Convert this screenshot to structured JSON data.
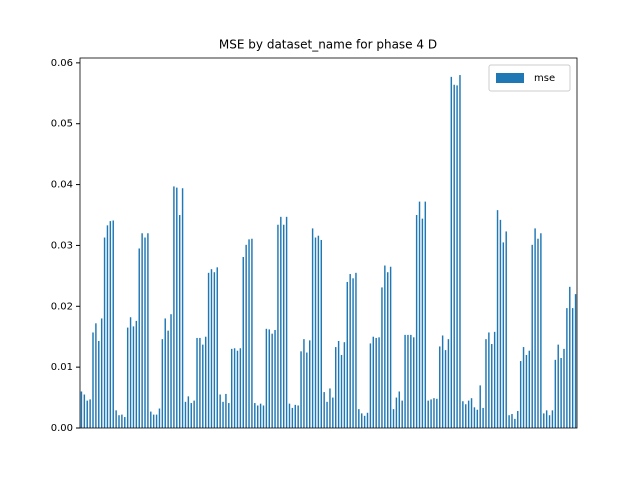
{
  "chart_data": {
    "type": "bar",
    "title": "MSE by dataset_name for phase 4 D",
    "series": [
      {
        "name": "mse",
        "color": "#1f77b4",
        "values": [
          0.006,
          0.0055,
          0.0045,
          0.0047,
          0.0157,
          0.0172,
          0.0143,
          0.018,
          0.0313,
          0.0333,
          0.034,
          0.0341,
          0.0029,
          0.0021,
          0.0022,
          0.0018,
          0.0165,
          0.0182,
          0.0167,
          0.0176,
          0.0295,
          0.032,
          0.0313,
          0.032,
          0.0027,
          0.0022,
          0.0022,
          0.0032,
          0.0146,
          0.018,
          0.016,
          0.0187,
          0.0397,
          0.0395,
          0.035,
          0.0394,
          0.0043,
          0.0052,
          0.0041,
          0.0045,
          0.0148,
          0.0148,
          0.0137,
          0.015,
          0.0255,
          0.0261,
          0.0256,
          0.0264,
          0.0055,
          0.0043,
          0.0056,
          0.0041,
          0.013,
          0.0131,
          0.0127,
          0.0131,
          0.0281,
          0.0301,
          0.031,
          0.0311,
          0.0041,
          0.0037,
          0.004,
          0.0037,
          0.0163,
          0.0162,
          0.0155,
          0.0161,
          0.0334,
          0.0347,
          0.0334,
          0.0347,
          0.004,
          0.0033,
          0.0038,
          0.0037,
          0.0126,
          0.0146,
          0.0124,
          0.0144,
          0.0328,
          0.0313,
          0.0316,
          0.0309,
          0.0059,
          0.0043,
          0.0065,
          0.005,
          0.0133,
          0.0143,
          0.012,
          0.0141,
          0.024,
          0.0253,
          0.0246,
          0.0255,
          0.0031,
          0.0024,
          0.002,
          0.0025,
          0.0139,
          0.015,
          0.0148,
          0.0149,
          0.0231,
          0.0267,
          0.0256,
          0.0265,
          0.0031,
          0.005,
          0.006,
          0.0045,
          0.0153,
          0.0153,
          0.0153,
          0.0149,
          0.035,
          0.0372,
          0.0344,
          0.0372,
          0.0045,
          0.0047,
          0.0049,
          0.0048,
          0.0134,
          0.0152,
          0.0128,
          0.0146,
          0.0577,
          0.0564,
          0.0563,
          0.058,
          0.0044,
          0.0039,
          0.0045,
          0.0049,
          0.0034,
          0.003,
          0.007,
          0.0033,
          0.0146,
          0.0157,
          0.0138,
          0.0158,
          0.0358,
          0.0342,
          0.0305,
          0.0323,
          0.0021,
          0.0023,
          0.0015,
          0.0028,
          0.011,
          0.0133,
          0.012,
          0.0127,
          0.0301,
          0.0328,
          0.0311,
          0.032,
          0.0024,
          0.0029,
          0.0021,
          0.0029,
          0.0112,
          0.0137,
          0.0115,
          0.013,
          0.0197,
          0.0232,
          0.0197,
          0.022
        ]
      }
    ],
    "ylim": [
      0,
      0.0608
    ],
    "yticks": [
      {
        "value": 0,
        "label": "0.00"
      },
      0.01,
      0.02,
      0.03,
      0.04,
      0.05,
      0.06
    ],
    "legend": "upper right"
  }
}
